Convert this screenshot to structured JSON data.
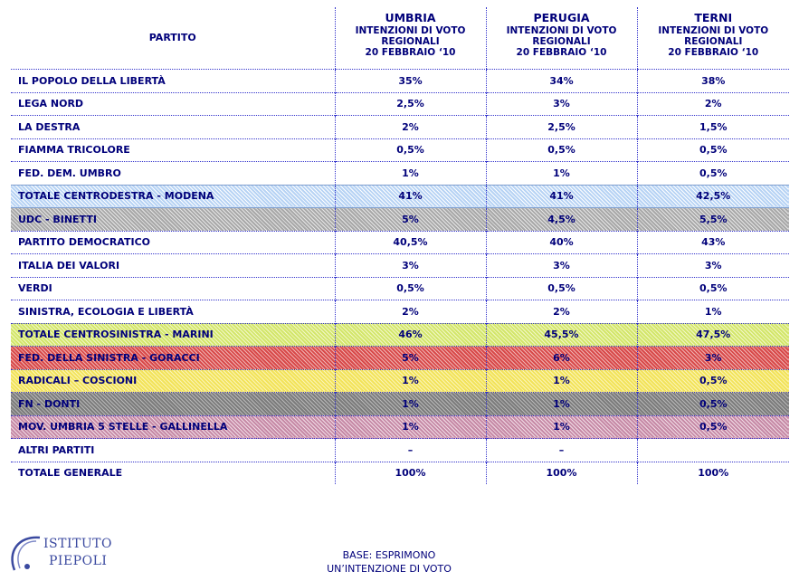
{
  "header": {
    "party": "PARTITO",
    "regions": [
      {
        "name": "UMBRIA",
        "line1": "INTENZIONI DI VOTO",
        "line2": "REGIONALI",
        "line3": "20 FEBBRAIO ‘10"
      },
      {
        "name": "PERUGIA",
        "line1": "INTENZIONI DI VOTO",
        "line2": "REGIONALI",
        "line3": "20 FEBBRAIO ‘10"
      },
      {
        "name": "TERNI",
        "line1": "INTENZIONI DI VOTO",
        "line2": "REGIONALI",
        "line3": "20 FEBBRAIO ‘10"
      }
    ]
  },
  "rows": [
    {
      "party": "IL POPOLO DELLA LIBERTÀ",
      "umbria": "35%",
      "perugia": "34%",
      "terni": "38%"
    },
    {
      "party": "LEGA NORD",
      "umbria": "2,5%",
      "perugia": "3%",
      "terni": "2%"
    },
    {
      "party": "LA DESTRA",
      "umbria": "2%",
      "perugia": "2,5%",
      "terni": "1,5%"
    },
    {
      "party": "FIAMMA TRICOLORE",
      "umbria": "0,5%",
      "perugia": "0,5%",
      "terni": "0,5%"
    },
    {
      "party": "FED. DEM. UMBRO",
      "umbria": "1%",
      "perugia": "1%",
      "terni": "0,5%"
    },
    {
      "party": "TOTALE CENTRODESTRA - MODENA",
      "umbria": "41%",
      "perugia": "41%",
      "terni": "42,5%"
    },
    {
      "party": "UDC - BINETTI",
      "umbria": "5%",
      "perugia": "4,5%",
      "terni": "5,5%"
    },
    {
      "party": "PARTITO DEMOCRATICO",
      "umbria": "40,5%",
      "perugia": "40%",
      "terni": "43%"
    },
    {
      "party": "ITALIA DEI VALORI",
      "umbria": "3%",
      "perugia": "3%",
      "terni": "3%"
    },
    {
      "party": "VERDI",
      "umbria": "0,5%",
      "perugia": "0,5%",
      "terni": "0,5%"
    },
    {
      "party": "SINISTRA, ECOLOGIA E LIBERTÀ",
      "umbria": "2%",
      "perugia": "2%",
      "terni": "1%"
    },
    {
      "party": "TOTALE CENTROSINISTRA - MARINI",
      "umbria": "46%",
      "perugia": "45,5%",
      "terni": "47,5%"
    },
    {
      "party": "FED. DELLA SINISTRA - GORACCI",
      "umbria": "5%",
      "perugia": "6%",
      "terni": "3%"
    },
    {
      "party": "RADICALI – COSCIONI",
      "umbria": "1%",
      "perugia": "1%",
      "terni": "0,5%"
    },
    {
      "party": "FN - DONTI",
      "umbria": "1%",
      "perugia": "1%",
      "terni": "0,5%"
    },
    {
      "party": "MOV. UMBRIA 5 STELLE - GALLINELLA",
      "umbria": "1%",
      "perugia": "1%",
      "terni": "0,5%"
    },
    {
      "party": "ALTRI PARTITI",
      "umbria": "–",
      "perugia": "–",
      "terni": ""
    },
    {
      "party": "TOTALE GENERALE",
      "umbria": "100%",
      "perugia": "100%",
      "terni": "100%"
    }
  ],
  "footer": {
    "logo_line1": "ISTITUTO",
    "logo_line2": "PIEPOLI",
    "base_line1": "BASE:  ESPRIMONO",
    "base_line2": "UN’INTENZIONE  DI  VOTO"
  },
  "colors": {
    "text": "#00007a",
    "centrodestra": "#b7d3f4",
    "udc": "#a8a8a8",
    "centrosinistra": "#d3e66b",
    "sinistra": "#d84a4a",
    "radicali": "#f2e35a",
    "fn": "#7c7c7c",
    "m5s": "#c68aa6"
  }
}
